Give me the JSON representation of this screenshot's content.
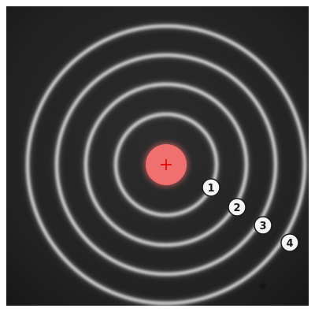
{
  "scene": {
    "background_color": "#232323",
    "ring_color": "#d9d9d9",
    "center_color": "#f07070",
    "crosshair_color": "#e00000",
    "ring_count": 4
  },
  "markers": [
    {
      "label": "1"
    },
    {
      "label": "2"
    },
    {
      "label": "3"
    },
    {
      "label": "4"
    }
  ]
}
